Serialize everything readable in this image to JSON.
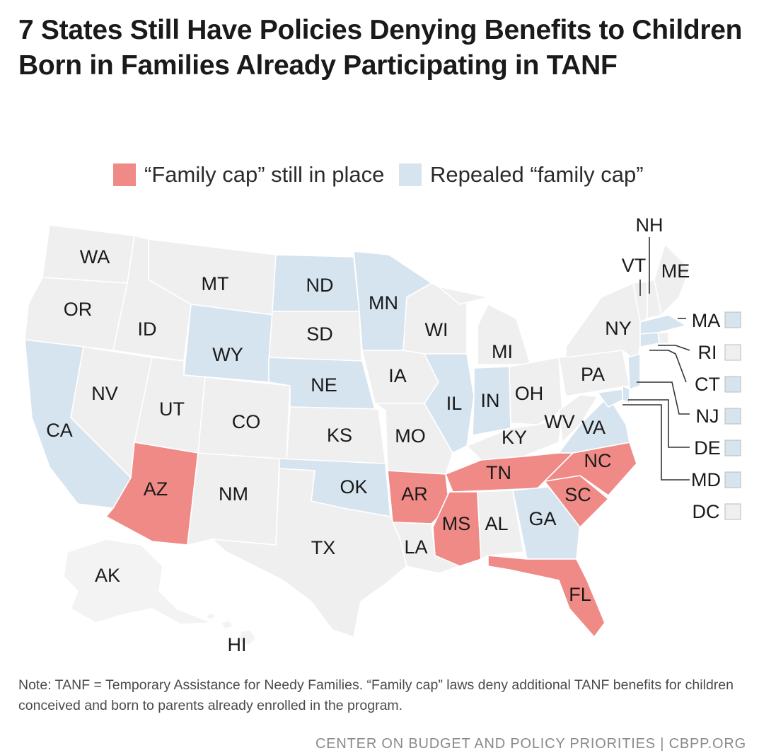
{
  "title": "7 States Still Have Policies Denying Benefits to Children Born in Families Already Participating in TANF",
  "legend": {
    "capped_label": "“Family cap” still in place",
    "repealed_label": "Repealed “family cap”"
  },
  "colors": {
    "capped": "#f08a87",
    "repealed": "#d6e4ef",
    "none": "#efefef",
    "ak_hi": "#f3f3f3",
    "callout_line": "#333333"
  },
  "states": {
    "WA": {
      "label": "WA",
      "status": "none"
    },
    "OR": {
      "label": "OR",
      "status": "none"
    },
    "CA": {
      "label": "CA",
      "status": "repealed"
    },
    "ID": {
      "label": "ID",
      "status": "none"
    },
    "NV": {
      "label": "NV",
      "status": "none"
    },
    "MT": {
      "label": "MT",
      "status": "none"
    },
    "WY": {
      "label": "WY",
      "status": "repealed"
    },
    "UT": {
      "label": "UT",
      "status": "none"
    },
    "CO": {
      "label": "CO",
      "status": "none"
    },
    "AZ": {
      "label": "AZ",
      "status": "capped"
    },
    "NM": {
      "label": "NM",
      "status": "none"
    },
    "ND": {
      "label": "ND",
      "status": "repealed"
    },
    "SD": {
      "label": "SD",
      "status": "none"
    },
    "NE": {
      "label": "NE",
      "status": "repealed"
    },
    "KS": {
      "label": "KS",
      "status": "none"
    },
    "OK": {
      "label": "OK",
      "status": "repealed"
    },
    "TX": {
      "label": "TX",
      "status": "none"
    },
    "MN": {
      "label": "MN",
      "status": "repealed"
    },
    "IA": {
      "label": "IA",
      "status": "none"
    },
    "MO": {
      "label": "MO",
      "status": "none"
    },
    "AR": {
      "label": "AR",
      "status": "capped"
    },
    "LA": {
      "label": "LA",
      "status": "none"
    },
    "WI": {
      "label": "WI",
      "status": "none"
    },
    "IL": {
      "label": "IL",
      "status": "repealed"
    },
    "MI": {
      "label": "MI",
      "status": "none"
    },
    "IN": {
      "label": "IN",
      "status": "repealed"
    },
    "OH": {
      "label": "OH",
      "status": "none"
    },
    "KY": {
      "label": "KY",
      "status": "none"
    },
    "TN": {
      "label": "TN",
      "status": "capped"
    },
    "MS": {
      "label": "MS",
      "status": "capped"
    },
    "AL": {
      "label": "AL",
      "status": "none"
    },
    "GA": {
      "label": "GA",
      "status": "repealed"
    },
    "FL": {
      "label": "FL",
      "status": "capped"
    },
    "SC": {
      "label": "SC",
      "status": "capped"
    },
    "NC": {
      "label": "NC",
      "status": "capped"
    },
    "VA": {
      "label": "VA",
      "status": "repealed"
    },
    "WV": {
      "label": "WV",
      "status": "none"
    },
    "PA": {
      "label": "PA",
      "status": "none"
    },
    "NY": {
      "label": "NY",
      "status": "none"
    },
    "VT": {
      "label": "VT",
      "status": "none"
    },
    "NH": {
      "label": "NH",
      "status": "none"
    },
    "ME": {
      "label": "ME",
      "status": "none"
    },
    "MA": {
      "label": "MA",
      "status": "repealed"
    },
    "RI": {
      "label": "RI",
      "status": "none"
    },
    "CT": {
      "label": "CT",
      "status": "repealed"
    },
    "NJ": {
      "label": "NJ",
      "status": "repealed"
    },
    "DE": {
      "label": "DE",
      "status": "repealed"
    },
    "MD": {
      "label": "MD",
      "status": "repealed"
    },
    "DC": {
      "label": "DC",
      "status": "none"
    },
    "AK": {
      "label": "AK",
      "status": "none"
    },
    "HI": {
      "label": "HI",
      "status": "none"
    }
  },
  "note": "Note: TANF = Temporary Assistance for Needy Families. “Family cap” laws deny additional TANF benefits for children conceived and born to parents already enrolled in the program.",
  "footer": "CENTER ON BUDGET AND POLICY PRIORITIES | CBPP.ORG"
}
